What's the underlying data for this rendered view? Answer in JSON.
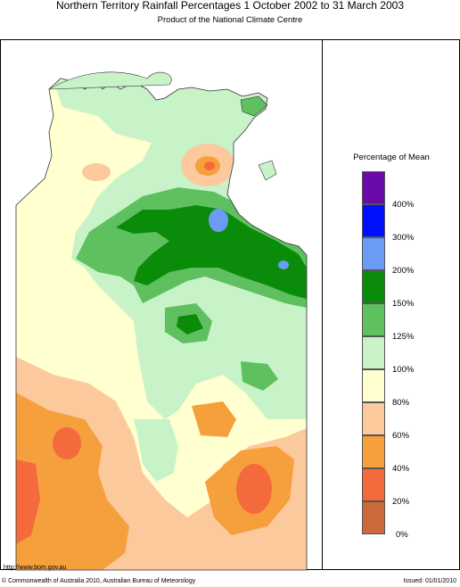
{
  "title": "Northern Territory Rainfall Percentages 1 October 2002 to 31 March 2003",
  "subtitle": "Product of the National Climate Centre",
  "legend": {
    "title": "Percentage of Mean",
    "bins": [
      {
        "color": "#6a0aa8"
      },
      {
        "color": "#0010ff",
        "upper": "400%"
      },
      {
        "color": "#6a9cf5",
        "upper": "300%"
      },
      {
        "color": "#0a8c0a",
        "upper": "200%"
      },
      {
        "color": "#5fc05f",
        "upper": "150%"
      },
      {
        "color": "#c8f2c8",
        "upper": "125%"
      },
      {
        "color": "#ffffd0",
        "upper": "100%"
      },
      {
        "color": "#fbc99c",
        "upper": "80%"
      },
      {
        "color": "#f5a03c",
        "upper": "60%"
      },
      {
        "color": "#f56a3c",
        "upper": "40%"
      },
      {
        "color": "#cd6a3c",
        "upper": "20%"
      }
    ],
    "bottom_label": "0%"
  },
  "footer": {
    "url": "http://www.bom.gov.au",
    "copyright": "© Commonwealth of Australia 2010, Australian Bureau of Meteorology",
    "issued": "Issued: 01/01/2010"
  },
  "colors": {
    "cream": "#ffffd0",
    "light_green": "#c8f2c8",
    "mid_green": "#5fc05f",
    "dark_green": "#0a8c0a",
    "light_blue": "#6a9cf5",
    "peach": "#fbc99c",
    "orange": "#f5a03c",
    "red_orange": "#f56a3c"
  }
}
